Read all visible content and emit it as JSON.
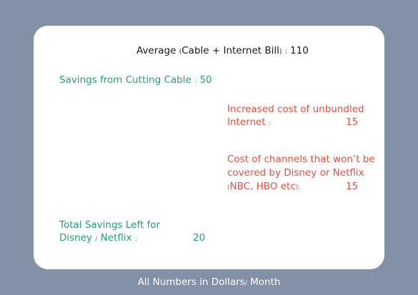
{
  "average": {
    "label_main": "Average",
    "label_open": "(",
    "label_detail": "Cable + Internet Bill",
    "label_close": ")",
    "colon": ":",
    "value": "110"
  },
  "savings_cutting_cable": {
    "label": "Savings from Cutting Cable",
    "colon": ":",
    "value": "50"
  },
  "unbundled_internet": {
    "line1": "Increased cost of unbundled",
    "line2": "Internet",
    "colon": ":",
    "value": "15"
  },
  "uncovered_channels": {
    "line1": "Cost of channels that won’t be",
    "line2": "covered by Disney or Netflix",
    "line3_open": "(",
    "line3_text": "NBC, HBO etc",
    "line3_close": ")",
    "colon": ":",
    "value": "15"
  },
  "total_savings": {
    "line1": "Total Savings Left for",
    "line2_a": "Disney",
    "line2_slash": "/",
    "line2_b": "Netflix",
    "colon": ":",
    "value": "20"
  },
  "footer": {
    "text_a": "All Numbers in Dollars",
    "slash": "/",
    "text_b": "Month"
  },
  "colors": {
    "background": "#8291a6",
    "card": "#ffffff",
    "green": "#1f9e78",
    "red": "#ee4a3c"
  }
}
